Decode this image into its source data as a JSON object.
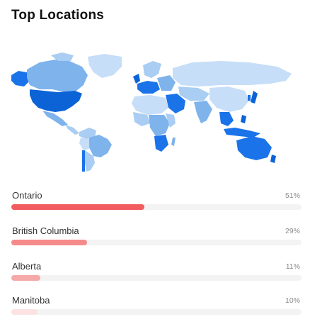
{
  "card": {
    "title": "Top Locations"
  },
  "map": {
    "name": "world-map"
  },
  "locations": [
    {
      "name": "Ontario",
      "percent_label": "51%",
      "value": 51,
      "color": "#f25c5f"
    },
    {
      "name": "British Columbia",
      "percent_label": "29%",
      "value": 29,
      "color": "#f58a8b"
    },
    {
      "name": "Alberta",
      "percent_label": "11%",
      "value": 11,
      "color": "#f6a9a9"
    },
    {
      "name": "Manitoba",
      "percent_label": "10%",
      "value": 10,
      "color": "#fce3e3"
    }
  ]
}
